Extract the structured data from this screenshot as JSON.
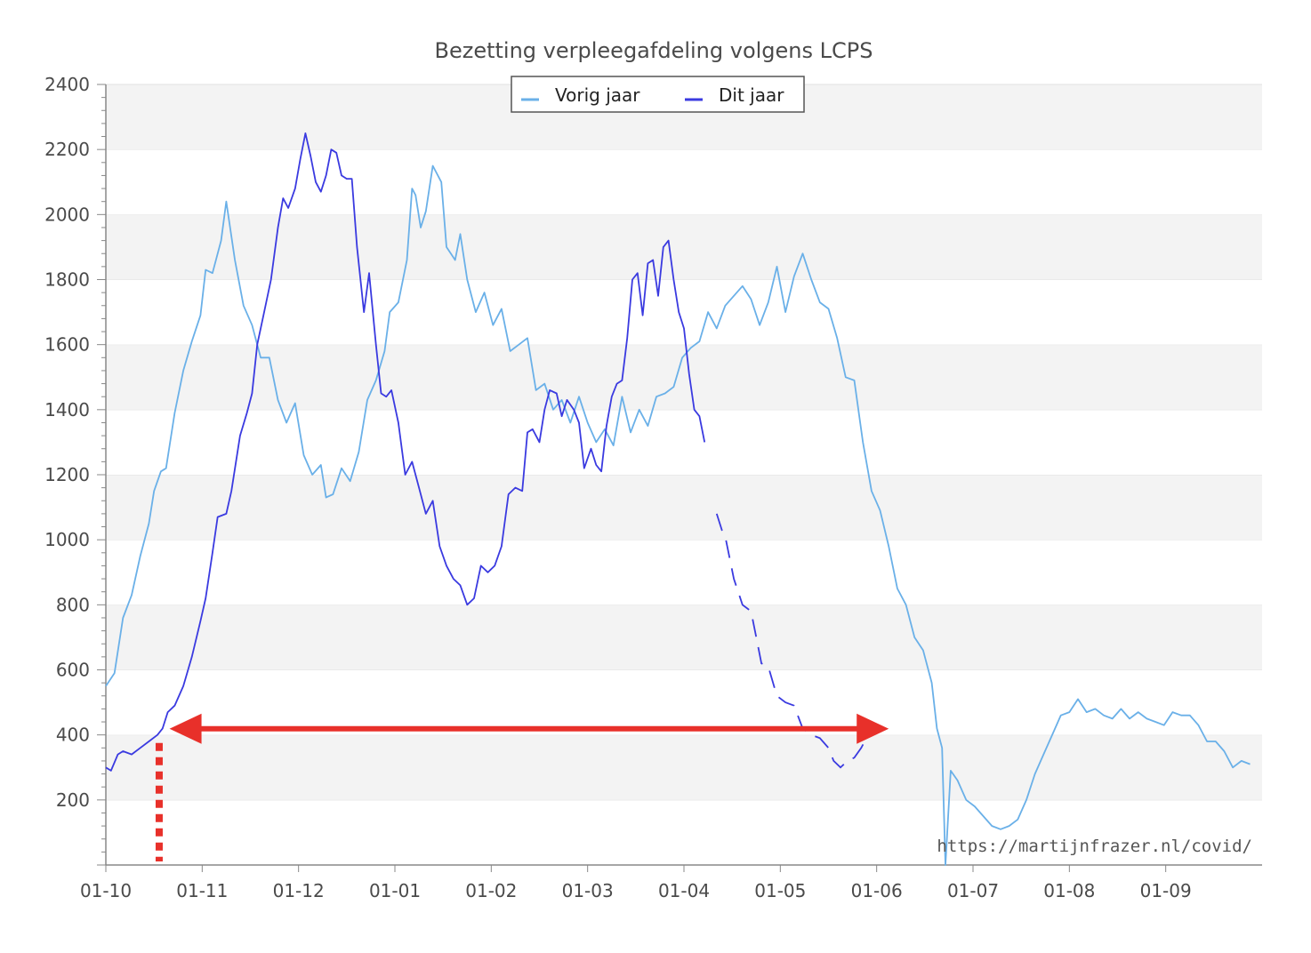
{
  "chart_data": {
    "type": "line",
    "title": "Bezetting verpleegafdeling volgens LCPS",
    "xlabel": "",
    "ylabel": "",
    "x_ticks": [
      "01-10",
      "01-11",
      "01-12",
      "01-01",
      "01-02",
      "01-03",
      "01-04",
      "01-05",
      "01-06",
      "01-07",
      "01-08",
      "01-09"
    ],
    "y_ticks": [
      200,
      400,
      600,
      800,
      1000,
      1200,
      1400,
      1600,
      1800,
      2000,
      2200,
      2400
    ],
    "ylim": [
      0,
      2400
    ],
    "legend_position": "top-center",
    "grid": "horizontal bands",
    "watermark": "https://martijnfrazer.nl/covid/",
    "series": [
      {
        "name": "Vorig jaar",
        "color": "#6ab0e8",
        "points": [
          [
            0,
            550
          ],
          [
            5,
            590
          ],
          [
            10,
            760
          ],
          [
            15,
            830
          ],
          [
            20,
            950
          ],
          [
            25,
            1050
          ],
          [
            28,
            1150
          ],
          [
            32,
            1210
          ],
          [
            35,
            1220
          ],
          [
            40,
            1390
          ],
          [
            45,
            1520
          ],
          [
            50,
            1610
          ],
          [
            55,
            1690
          ],
          [
            58,
            1830
          ],
          [
            62,
            1820
          ],
          [
            67,
            1920
          ],
          [
            70,
            2040
          ],
          [
            75,
            1860
          ],
          [
            80,
            1720
          ],
          [
            85,
            1660
          ],
          [
            90,
            1560
          ],
          [
            95,
            1560
          ],
          [
            100,
            1430
          ],
          [
            105,
            1360
          ],
          [
            110,
            1420
          ],
          [
            115,
            1260
          ],
          [
            120,
            1200
          ],
          [
            125,
            1230
          ],
          [
            128,
            1130
          ],
          [
            132,
            1140
          ],
          [
            137,
            1220
          ],
          [
            142,
            1180
          ],
          [
            147,
            1270
          ],
          [
            152,
            1430
          ],
          [
            157,
            1490
          ],
          [
            162,
            1580
          ],
          [
            165,
            1700
          ],
          [
            170,
            1730
          ],
          [
            175,
            1860
          ],
          [
            178,
            2080
          ],
          [
            180,
            2060
          ],
          [
            183,
            1960
          ],
          [
            186,
            2010
          ],
          [
            190,
            2150
          ],
          [
            195,
            2100
          ],
          [
            198,
            1900
          ],
          [
            203,
            1860
          ],
          [
            206,
            1940
          ],
          [
            210,
            1800
          ],
          [
            215,
            1700
          ],
          [
            220,
            1760
          ],
          [
            225,
            1660
          ],
          [
            230,
            1710
          ],
          [
            235,
            1580
          ],
          [
            240,
            1600
          ],
          [
            245,
            1620
          ],
          [
            250,
            1460
          ],
          [
            255,
            1480
          ],
          [
            260,
            1400
          ],
          [
            265,
            1430
          ],
          [
            270,
            1360
          ],
          [
            275,
            1440
          ],
          [
            280,
            1360
          ],
          [
            285,
            1300
          ],
          [
            290,
            1340
          ],
          [
            295,
            1290
          ],
          [
            300,
            1440
          ],
          [
            305,
            1330
          ],
          [
            310,
            1400
          ],
          [
            315,
            1350
          ],
          [
            320,
            1440
          ],
          [
            325,
            1450
          ],
          [
            330,
            1470
          ],
          [
            335,
            1560
          ],
          [
            340,
            1590
          ],
          [
            345,
            1610
          ],
          [
            350,
            1700
          ],
          [
            355,
            1650
          ],
          [
            360,
            1720
          ],
          [
            365,
            1750
          ],
          [
            370,
            1780
          ],
          [
            375,
            1740
          ],
          [
            380,
            1660
          ],
          [
            385,
            1730
          ],
          [
            390,
            1840
          ],
          [
            395,
            1700
          ],
          [
            400,
            1810
          ],
          [
            405,
            1880
          ],
          [
            410,
            1800
          ],
          [
            415,
            1730
          ],
          [
            420,
            1710
          ],
          [
            425,
            1620
          ],
          [
            430,
            1500
          ],
          [
            435,
            1490
          ],
          [
            440,
            1300
          ],
          [
            445,
            1150
          ],
          [
            450,
            1090
          ],
          [
            455,
            980
          ],
          [
            460,
            850
          ],
          [
            465,
            800
          ],
          [
            470,
            700
          ],
          [
            475,
            660
          ],
          [
            480,
            560
          ],
          [
            483,
            420
          ],
          [
            486,
            360
          ],
          [
            488,
            0
          ],
          [
            491,
            290
          ],
          [
            495,
            260
          ],
          [
            500,
            200
          ],
          [
            505,
            180
          ],
          [
            510,
            150
          ],
          [
            515,
            120
          ],
          [
            520,
            110
          ],
          [
            525,
            120
          ],
          [
            530,
            140
          ],
          [
            535,
            200
          ],
          [
            540,
            280
          ],
          [
            545,
            340
          ],
          [
            550,
            400
          ],
          [
            555,
            460
          ],
          [
            560,
            470
          ],
          [
            565,
            510
          ],
          [
            570,
            470
          ],
          [
            575,
            480
          ],
          [
            580,
            460
          ],
          [
            585,
            450
          ],
          [
            590,
            480
          ],
          [
            595,
            450
          ],
          [
            600,
            470
          ],
          [
            605,
            450
          ],
          [
            610,
            440
          ],
          [
            615,
            430
          ],
          [
            620,
            470
          ],
          [
            625,
            460
          ],
          [
            630,
            460
          ],
          [
            635,
            430
          ],
          [
            640,
            380
          ],
          [
            645,
            380
          ],
          [
            650,
            350
          ],
          [
            655,
            300
          ],
          [
            660,
            320
          ],
          [
            665,
            310
          ]
        ]
      },
      {
        "name": "Dit jaar",
        "color": "#3a3ae0",
        "points": [
          [
            0,
            300
          ],
          [
            3,
            290
          ],
          [
            7,
            340
          ],
          [
            10,
            350
          ],
          [
            15,
            340
          ],
          [
            20,
            360
          ],
          [
            25,
            380
          ],
          [
            30,
            400
          ],
          [
            33,
            420
          ],
          [
            36,
            470
          ],
          [
            40,
            490
          ],
          [
            45,
            550
          ],
          [
            50,
            640
          ],
          [
            55,
            750
          ],
          [
            58,
            820
          ],
          [
            62,
            960
          ],
          [
            65,
            1070
          ],
          [
            70,
            1080
          ],
          [
            73,
            1150
          ],
          [
            78,
            1320
          ],
          [
            82,
            1390
          ],
          [
            85,
            1450
          ],
          [
            88,
            1600
          ],
          [
            92,
            1700
          ],
          [
            96,
            1800
          ],
          [
            100,
            1960
          ],
          [
            103,
            2050
          ],
          [
            106,
            2020
          ],
          [
            110,
            2080
          ],
          [
            113,
            2170
          ],
          [
            116,
            2250
          ],
          [
            119,
            2180
          ],
          [
            122,
            2100
          ],
          [
            125,
            2070
          ],
          [
            128,
            2120
          ],
          [
            131,
            2200
          ],
          [
            134,
            2190
          ],
          [
            137,
            2120
          ],
          [
            140,
            2110
          ],
          [
            143,
            2110
          ],
          [
            146,
            1900
          ],
          [
            150,
            1700
          ],
          [
            153,
            1820
          ],
          [
            157,
            1600
          ],
          [
            160,
            1450
          ],
          [
            163,
            1440
          ],
          [
            166,
            1460
          ],
          [
            170,
            1360
          ],
          [
            174,
            1200
          ],
          [
            178,
            1240
          ],
          [
            182,
            1160
          ],
          [
            186,
            1080
          ],
          [
            190,
            1120
          ],
          [
            194,
            980
          ],
          [
            198,
            920
          ],
          [
            202,
            880
          ],
          [
            206,
            860
          ],
          [
            210,
            800
          ],
          [
            214,
            820
          ],
          [
            218,
            920
          ],
          [
            222,
            900
          ],
          [
            226,
            920
          ],
          [
            230,
            980
          ],
          [
            234,
            1140
          ],
          [
            238,
            1160
          ],
          [
            242,
            1150
          ],
          [
            245,
            1330
          ],
          [
            248,
            1340
          ],
          [
            252,
            1300
          ],
          [
            255,
            1400
          ],
          [
            258,
            1460
          ],
          [
            262,
            1450
          ],
          [
            265,
            1380
          ],
          [
            268,
            1430
          ],
          [
            272,
            1400
          ],
          [
            275,
            1360
          ],
          [
            278,
            1220
          ],
          [
            282,
            1280
          ],
          [
            285,
            1230
          ],
          [
            288,
            1210
          ],
          [
            291,
            1350
          ],
          [
            294,
            1440
          ],
          [
            297,
            1480
          ],
          [
            300,
            1490
          ],
          [
            303,
            1620
          ],
          [
            306,
            1800
          ],
          [
            309,
            1820
          ],
          [
            312,
            1690
          ],
          [
            315,
            1850
          ],
          [
            318,
            1860
          ],
          [
            321,
            1750
          ],
          [
            324,
            1900
          ],
          [
            327,
            1920
          ],
          [
            330,
            1800
          ],
          [
            333,
            1700
          ],
          [
            336,
            1650
          ],
          [
            339,
            1510
          ],
          [
            342,
            1400
          ],
          [
            345,
            1380
          ],
          [
            348,
            1300
          ]
        ],
        "points_2": [
          [
            355,
            1080
          ],
          [
            358,
            1030
          ],
          [
            360,
            1010
          ],
          [
            365,
            880
          ],
          [
            370,
            800
          ],
          [
            375,
            780
          ],
          [
            378,
            700
          ],
          [
            381,
            620
          ],
          [
            385,
            610
          ],
          [
            390,
            520
          ],
          [
            395,
            500
          ],
          [
            400,
            490
          ],
          [
            405,
            420
          ],
          [
            410,
            400
          ],
          [
            415,
            390
          ],
          [
            420,
            360
          ],
          [
            423,
            320
          ],
          [
            427,
            300
          ],
          [
            431,
            320
          ],
          [
            435,
            330
          ],
          [
            439,
            360
          ],
          [
            443,
            400
          ],
          [
            447,
            410
          ],
          [
            451,
            420
          ],
          [
            455,
            440
          ]
        ]
      }
    ],
    "annotations": [
      {
        "type": "double-arrow",
        "color": "#e8302a",
        "y": 430,
        "from_day": 37,
        "to_day": 455
      },
      {
        "type": "dotted-vertical",
        "color": "#e8302a",
        "day": 31
      }
    ]
  }
}
